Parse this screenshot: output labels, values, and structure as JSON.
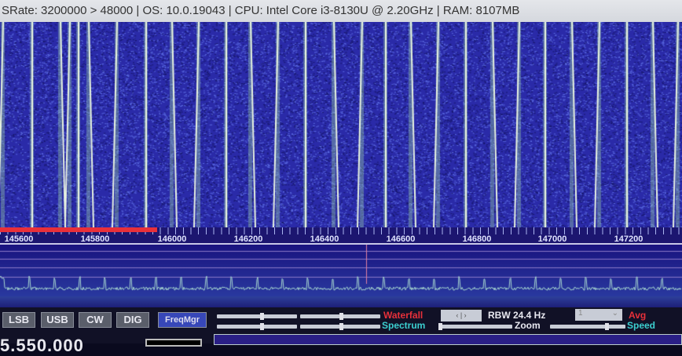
{
  "status_bar": {
    "text": "SRate: 3200000 > 48000 | OS: 10.0.19043 | CPU: Intel Core i3-8130U @ 2.20GHz | RAM: 8107MB"
  },
  "ruler": {
    "labels": [
      "145600",
      "145800",
      "146000",
      "146200",
      "146400",
      "146600",
      "146800",
      "147000",
      "147200"
    ]
  },
  "modes": [
    {
      "label": "LSB"
    },
    {
      "label": "USB"
    },
    {
      "label": "CW"
    },
    {
      "label": "DIG"
    },
    {
      "label": "FreqMgr",
      "active": true
    }
  ],
  "controls": {
    "waterfall": "Waterfall",
    "spectrum": "Spectrum",
    "rbw": "RBW 24.4 Hz",
    "zoom": "Zoom",
    "avg": "Avg",
    "speed": "Speed",
    "avg_value": "1"
  },
  "frequency": "5.550.000",
  "colors": {
    "waterfall_bg": "#2a2aa8",
    "waterfall_label": "#e8303a",
    "spectrum_label": "#3ccfd0",
    "marker": "#e080a0"
  }
}
